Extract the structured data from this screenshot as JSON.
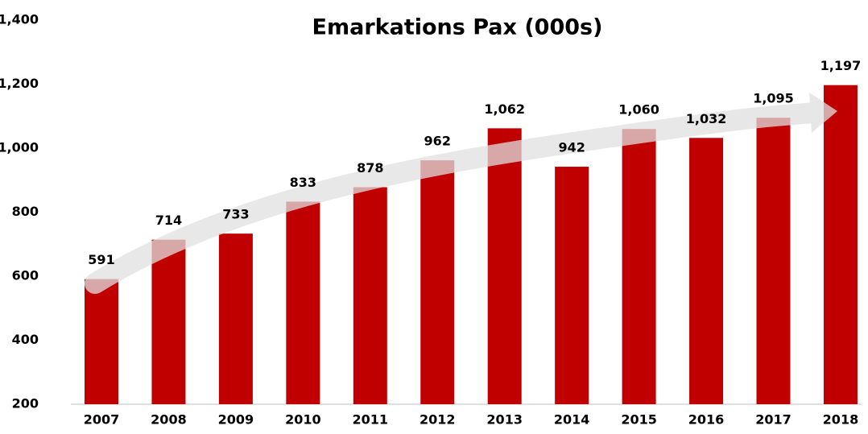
{
  "chart_data": {
    "type": "bar",
    "title": "Emarkations Pax (000s)",
    "categories": [
      "2007",
      "2008",
      "2009",
      "2010",
      "2011",
      "2012",
      "2013",
      "2014",
      "2015",
      "2016",
      "2017",
      "2018"
    ],
    "values": [
      591,
      714,
      733,
      833,
      878,
      962,
      1062,
      942,
      1060,
      1032,
      1095,
      1197
    ],
    "value_labels": [
      "591",
      "714",
      "733",
      "833",
      "878",
      "962",
      "1,062",
      "942",
      "1,060",
      "1,032",
      "1,095",
      "1,197"
    ],
    "color": "#c00000",
    "ylim": [
      200,
      1400
    ],
    "yticks": [
      200,
      400,
      600,
      800,
      {
        "value": 1000,
        "label": "1,000"
      },
      {
        "value": 1200,
        "label": "1,200"
      },
      {
        "value": 1400,
        "label": "1,400"
      }
    ],
    "grid": false
  }
}
